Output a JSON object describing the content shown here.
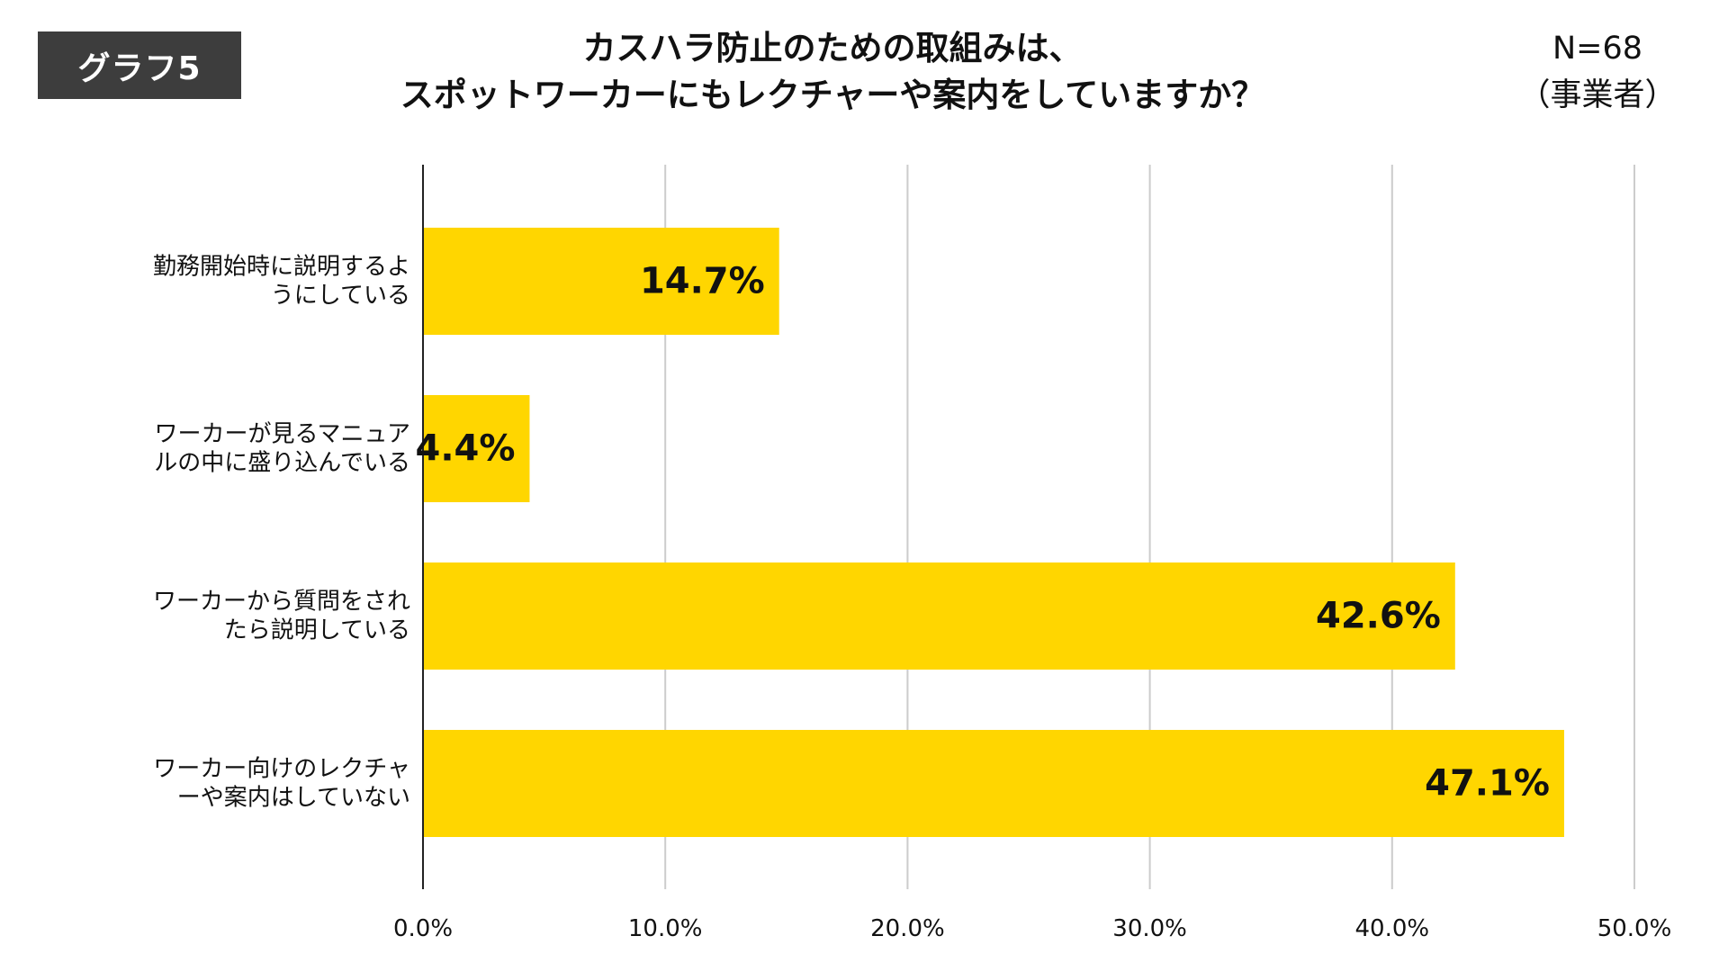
{
  "badge": {
    "label": "グラフ5"
  },
  "title": {
    "line1": "カスハラ防止のための取組みは、",
    "line2": "スポットワーカーにもレクチャーや案内をしていますか？"
  },
  "n_info": {
    "count": "N=68",
    "group": "（事業者）"
  },
  "colors": {
    "bar": "#FFD600",
    "grid": "#cccccc",
    "axis": "#222222"
  },
  "chart_data": {
    "type": "bar",
    "orientation": "horizontal",
    "categories": [
      [
        "勤務開始時に説明するよ",
        "うにしている"
      ],
      [
        "ワーカーが見るマニュア",
        "ルの中に盛り込んでいる"
      ],
      [
        "ワーカーから質問をされ",
        "たら説明している"
      ],
      [
        "ワーカー向けのレクチャ",
        "ーや案内はしていない"
      ]
    ],
    "values": [
      14.7,
      4.4,
      42.6,
      47.1
    ],
    "data_labels": [
      "14.7%",
      "4.4%",
      "42.6%",
      "47.1%"
    ],
    "xlim": [
      0,
      50
    ],
    "ticks": [
      0,
      10,
      20,
      30,
      40,
      50
    ],
    "tick_labels": [
      "0.0%",
      "10.0%",
      "20.0%",
      "30.0%",
      "40.0%",
      "50.0%"
    ],
    "grid": true,
    "legend": "none"
  }
}
